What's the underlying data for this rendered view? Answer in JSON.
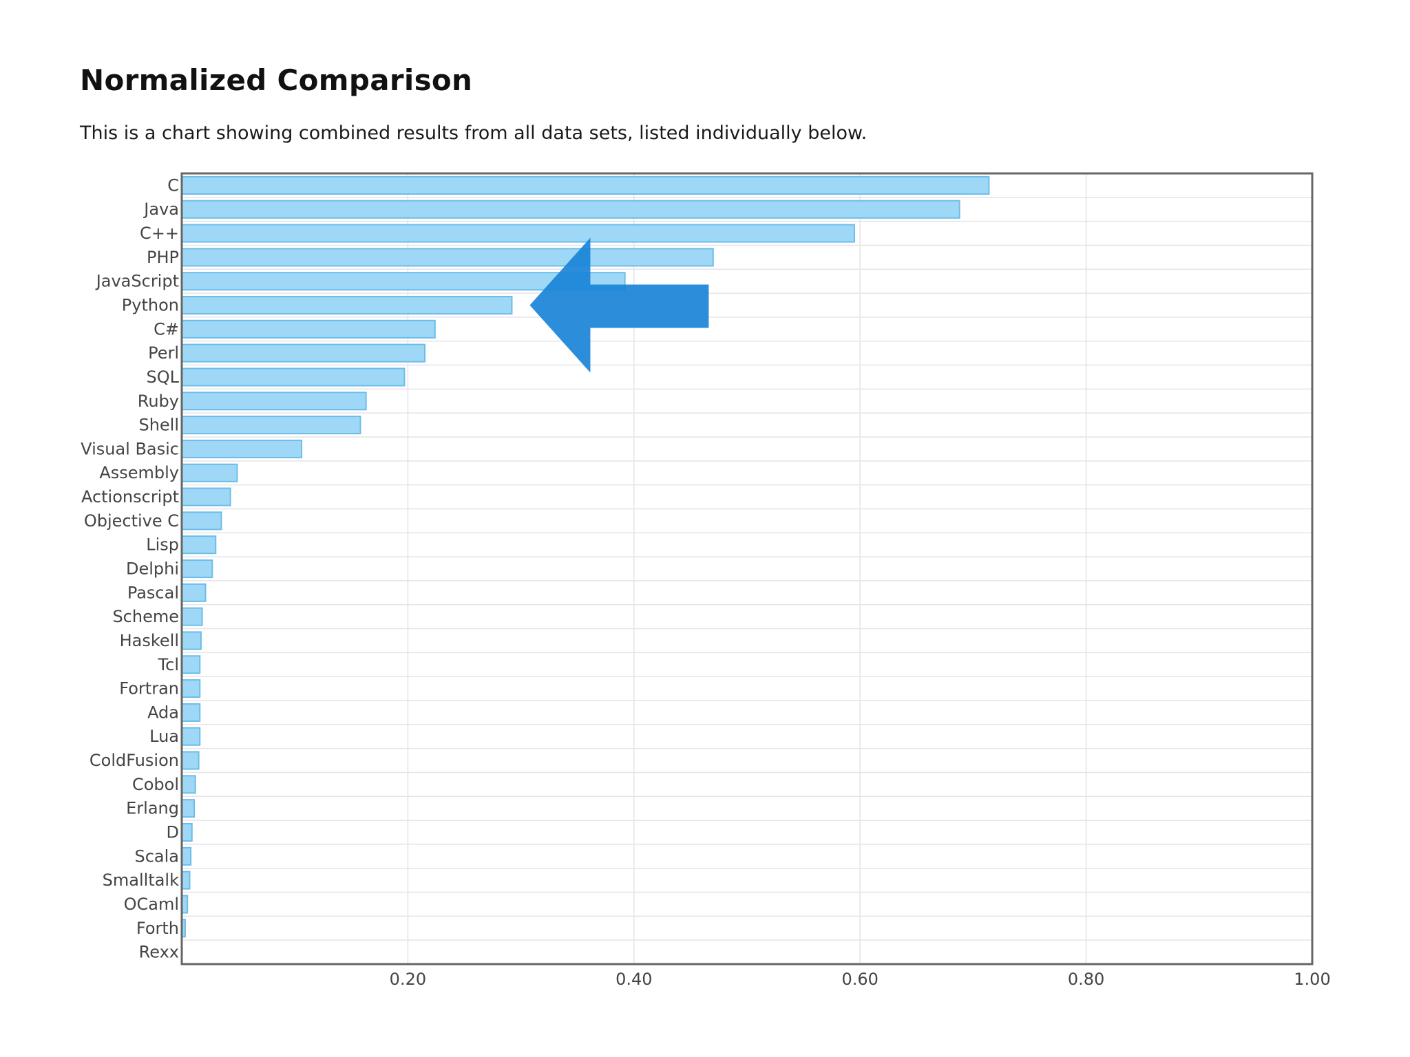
{
  "page": {
    "title": "Normalized Comparison",
    "description": "This is a chart showing combined results from all data sets, listed individually below."
  },
  "annotation": {
    "icon": "left-arrow-icon",
    "points_to": "Python",
    "color": "#1a84d8"
  },
  "colors": {
    "bar_fill": "#9ed8f6",
    "bar_stroke": "#6cbde9",
    "frame": "#666666",
    "grid": "#e4e4ea"
  },
  "chart_data": {
    "type": "bar",
    "orientation": "horizontal",
    "categories": [
      "C",
      "Java",
      "C++",
      "PHP",
      "JavaScript",
      "Python",
      "C#",
      "Perl",
      "SQL",
      "Ruby",
      "Shell",
      "Visual Basic",
      "Assembly",
      "Actionscript",
      "Objective C",
      "Lisp",
      "Delphi",
      "Pascal",
      "Scheme",
      "Haskell",
      "Tcl",
      "Fortran",
      "Ada",
      "Lua",
      "ColdFusion",
      "Cobol",
      "Erlang",
      "D",
      "Scala",
      "Smalltalk",
      "OCaml",
      "Forth",
      "Rexx"
    ],
    "values": [
      0.714,
      0.688,
      0.595,
      0.47,
      0.392,
      0.292,
      0.224,
      0.215,
      0.197,
      0.163,
      0.158,
      0.106,
      0.049,
      0.043,
      0.035,
      0.03,
      0.027,
      0.021,
      0.018,
      0.017,
      0.016,
      0.016,
      0.016,
      0.016,
      0.015,
      0.012,
      0.011,
      0.009,
      0.008,
      0.007,
      0.005,
      0.003,
      0.0
    ],
    "xlim": [
      0,
      1.0
    ],
    "xticks": [
      0.2,
      0.4,
      0.6,
      0.8,
      1.0
    ],
    "xtick_labels": [
      "0.20",
      "0.40",
      "0.60",
      "0.80",
      "1.00"
    ],
    "grid": true,
    "legend": "none"
  }
}
